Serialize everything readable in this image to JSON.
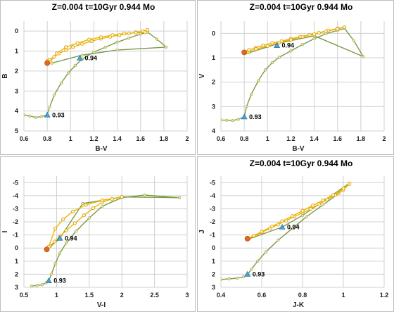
{
  "chart_data": [
    {
      "type": "line",
      "title": "Z=0.004  t=10Gyr 0.944 Mo",
      "xlabel": "B-V",
      "ylabel": "B",
      "xlim": [
        0.6,
        2.0
      ],
      "ylim": [
        5,
        -0.5
      ],
      "xticks": [
        "0.6",
        "0.8",
        "1",
        "1.2",
        "1.4",
        "1.6",
        "1.8",
        "2"
      ],
      "yticks": [
        "0",
        "1",
        "2",
        "3",
        "4",
        "5"
      ],
      "grid": true,
      "series": [
        {
          "role": "track",
          "x": [
            0.8,
            0.82,
            0.86,
            0.9,
            0.96,
            1.02,
            1.1,
            1.18,
            1.26,
            1.34,
            1.42,
            1.5,
            1.56,
            1.62,
            1.66,
            1.64,
            1.56,
            1.46,
            1.36,
            1.26,
            1.16,
            1.06,
            0.96,
            0.88,
            0.82
          ],
          "y": [
            1.5,
            1.42,
            1.28,
            1.12,
            0.96,
            0.8,
            0.64,
            0.5,
            0.38,
            0.28,
            0.2,
            0.12,
            0.06,
            0.0,
            -0.06,
            0.06,
            0.08,
            0.12,
            0.2,
            0.3,
            0.42,
            0.6,
            0.8,
            1.12,
            1.56
          ]
        },
        {
          "role": "isochrone",
          "x": [
            0.6,
            0.65,
            0.7,
            0.75,
            0.8,
            0.82,
            0.86,
            0.92,
            0.98,
            1.04,
            1.1,
            1.2,
            1.3,
            1.4,
            1.5,
            1.6,
            1.66,
            1.74,
            1.82,
            1.4,
            1.1,
            0.84
          ],
          "y": [
            4.2,
            4.25,
            4.32,
            4.28,
            4.2,
            3.8,
            3.2,
            2.6,
            2.1,
            1.72,
            1.4,
            1.05,
            0.8,
            0.55,
            0.35,
            0.15,
            0.05,
            0.4,
            0.8,
            0.95,
            1.2,
            1.6
          ]
        }
      ],
      "start_point": [
        0.8,
        1.6
      ],
      "triangle_points": [
        {
          "x": 1.08,
          "y": 1.35,
          "label": "0.94"
        },
        {
          "x": 0.8,
          "y": 4.2,
          "label": "0.93"
        }
      ]
    },
    {
      "type": "line",
      "title": "Z=0.004  t=10Gyr 0.944 Mo",
      "xlabel": "B-V",
      "ylabel": "V",
      "xlim": [
        0.6,
        2.0
      ],
      "ylim": [
        4,
        -0.5
      ],
      "xticks": [
        "0.6",
        "0.8",
        "1",
        "1.2",
        "1.4",
        "1.6",
        "1.8",
        "2"
      ],
      "yticks": [
        "0",
        "1",
        "2",
        "3",
        "4"
      ],
      "grid": true,
      "series": [
        {
          "role": "track",
          "x": [
            0.8,
            0.84,
            0.9,
            0.96,
            1.04,
            1.12,
            1.2,
            1.28,
            1.36,
            1.44,
            1.52,
            1.6,
            1.66,
            1.6,
            1.5,
            1.4,
            1.3,
            1.2,
            1.1,
            1.0,
            0.9,
            0.82
          ],
          "y": [
            0.76,
            0.68,
            0.58,
            0.5,
            0.4,
            0.32,
            0.22,
            0.14,
            0.06,
            -0.02,
            -0.12,
            -0.2,
            -0.26,
            -0.18,
            -0.08,
            0.04,
            0.14,
            0.26,
            0.38,
            0.52,
            0.64,
            0.78
          ]
        },
        {
          "role": "isochrone",
          "x": [
            0.6,
            0.65,
            0.7,
            0.75,
            0.8,
            0.82,
            0.86,
            0.92,
            0.98,
            1.04,
            1.1,
            1.2,
            1.3,
            1.4,
            1.5,
            1.6,
            1.66,
            1.74,
            1.82,
            1.4,
            1.1,
            0.84
          ],
          "y": [
            3.55,
            3.56,
            3.57,
            3.52,
            3.42,
            3.0,
            2.5,
            1.95,
            1.5,
            1.2,
            0.98,
            0.72,
            0.46,
            0.22,
            0.02,
            -0.12,
            -0.2,
            0.3,
            0.95,
            0.1,
            0.4,
            0.8
          ]
        }
      ],
      "start_point": [
        0.8,
        0.78
      ],
      "triangle_points": [
        {
          "x": 1.08,
          "y": 0.5,
          "label": "0.94"
        },
        {
          "x": 0.8,
          "y": 3.42,
          "label": "0.93"
        }
      ]
    },
    {
      "type": "line",
      "title": "",
      "xlabel": "V-I",
      "ylabel": "I",
      "xlim": [
        0.5,
        3.0
      ],
      "ylim": [
        3,
        -5.5
      ],
      "xticks": [
        "0.5",
        "1",
        "1.5",
        "2",
        "2.5",
        "3"
      ],
      "yticks": [
        "-5",
        "-4",
        "-3",
        "-2",
        "-1",
        "0",
        "1",
        "2",
        "3"
      ],
      "grid": true,
      "series": [
        {
          "role": "track",
          "x": [
            0.85,
            0.9,
            0.97,
            1.05,
            1.15,
            1.28,
            1.42,
            1.56,
            1.7,
            1.85,
            2.0,
            1.7,
            1.45,
            1.25,
            1.1,
            0.98,
            0.88
          ],
          "y": [
            0.1,
            -0.15,
            -0.5,
            -0.9,
            -1.35,
            -1.9,
            -2.5,
            -3.05,
            -3.5,
            -3.75,
            -3.9,
            -3.65,
            -3.3,
            -2.8,
            -2.2,
            -1.5,
            -0.1
          ]
        },
        {
          "role": "isochrone",
          "x": [
            0.62,
            0.7,
            0.78,
            0.84,
            0.88,
            0.92,
            0.98,
            1.05,
            1.15,
            1.3,
            1.5,
            1.7,
            2.0,
            2.35,
            2.88,
            2.0,
            1.4,
            1.05,
            0.86
          ],
          "y": [
            2.9,
            2.85,
            2.8,
            2.65,
            2.5,
            2.0,
            1.2,
            0.4,
            -0.4,
            -1.3,
            -2.3,
            -3.2,
            -3.85,
            -4.05,
            -3.85,
            -3.9,
            -3.4,
            -0.75,
            0.1
          ]
        }
      ],
      "start_point": [
        0.85,
        0.1
      ],
      "triangle_points": [
        {
          "x": 1.05,
          "y": -0.75,
          "label": "0.94"
        },
        {
          "x": 0.88,
          "y": 2.5,
          "label": "0.93"
        }
      ]
    },
    {
      "type": "line",
      "title": "Z=0.004  t=10Gyr 0.944 Mo",
      "xlabel": "J-K",
      "ylabel": "J",
      "xlim": [
        0.4,
        1.2
      ],
      "ylim": [
        3,
        -5.5
      ],
      "xticks": [
        "0.4",
        "0.6",
        "0.8",
        "1",
        "1.2"
      ],
      "yticks": [
        "-5",
        "-4",
        "-3",
        "-2",
        "-1",
        "0",
        "1",
        "2",
        "3"
      ],
      "grid": true,
      "series": [
        {
          "role": "track",
          "x": [
            0.53,
            0.56,
            0.6,
            0.64,
            0.68,
            0.72,
            0.76,
            0.8,
            0.84,
            0.88,
            0.92,
            0.96,
            1.0,
            1.03,
            1.0,
            0.95,
            0.9,
            0.85,
            0.8,
            0.75,
            0.7,
            0.65,
            0.6,
            0.56,
            0.53
          ],
          "y": [
            -0.7,
            -0.9,
            -1.2,
            -1.5,
            -1.8,
            -2.1,
            -2.4,
            -2.7,
            -3.0,
            -3.35,
            -3.7,
            -4.05,
            -4.45,
            -4.9,
            -4.55,
            -4.05,
            -3.65,
            -3.25,
            -2.85,
            -2.45,
            -2.05,
            -1.65,
            -1.25,
            -0.95,
            -0.7
          ]
        },
        {
          "role": "isochrone",
          "x": [
            0.4,
            0.44,
            0.48,
            0.51,
            0.53,
            0.55,
            0.58,
            0.62,
            0.68,
            0.75,
            0.82,
            0.9,
            0.98,
            1.03,
            0.8,
            0.7,
            0.54
          ],
          "y": [
            2.4,
            2.35,
            2.3,
            2.2,
            2.05,
            1.6,
            1.0,
            0.3,
            -0.6,
            -1.5,
            -2.4,
            -3.3,
            -4.2,
            -4.95,
            -2.5,
            -1.6,
            -0.72
          ]
        }
      ],
      "start_point": [
        0.53,
        -0.72
      ],
      "triangle_points": [
        {
          "x": 0.7,
          "y": -1.6,
          "label": "0.94"
        },
        {
          "x": 0.53,
          "y": 2.0,
          "label": "0.93"
        }
      ]
    }
  ]
}
